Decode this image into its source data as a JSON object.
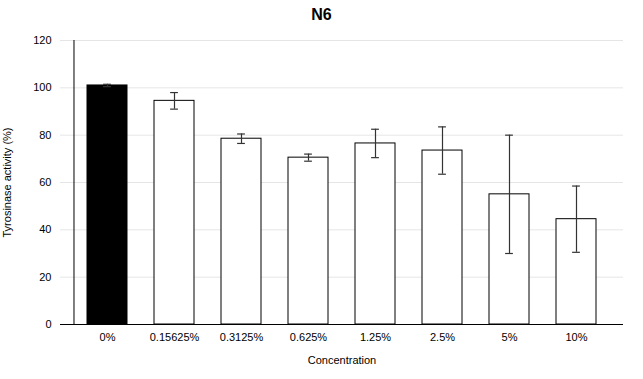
{
  "chart_data": {
    "type": "bar",
    "title": "N6",
    "xlabel": "Concentration",
    "ylabel": "Tyrosinase activity (%)",
    "categories": [
      "0%",
      "0.15625%",
      "0.3125%",
      "0.625%",
      "1.25%",
      "2.5%",
      "5%",
      "10%"
    ],
    "values": [
      101,
      94.5,
      78.5,
      70.5,
      76.5,
      73.5,
      55.0,
      44.5
    ],
    "errors": [
      0.5,
      3.5,
      2.0,
      1.5,
      6.0,
      10.0,
      25.0,
      14.0
    ],
    "colors": [
      "#000000",
      "#ffffff",
      "#ffffff",
      "#ffffff",
      "#ffffff",
      "#ffffff",
      "#ffffff",
      "#ffffff"
    ],
    "ylim": [
      0,
      120
    ],
    "yticks": [
      0,
      20,
      40,
      60,
      80,
      100,
      120
    ],
    "grid": true
  }
}
